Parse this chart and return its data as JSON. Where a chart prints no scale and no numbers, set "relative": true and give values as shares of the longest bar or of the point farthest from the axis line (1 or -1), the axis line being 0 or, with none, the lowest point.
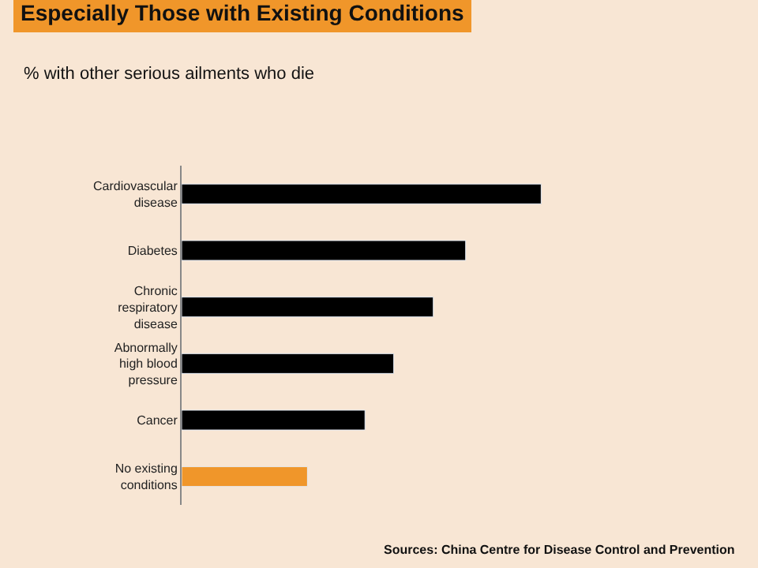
{
  "chart_data": {
    "type": "bar",
    "orientation": "horizontal",
    "relative": true,
    "title": "Especially Those with Existing Conditions",
    "subtitle": "% with other serious ailments who die",
    "categories": [
      "Cardiovascular disease",
      "Diabetes",
      "Chronic respiratory disease",
      "Abnormally high blood pressure",
      "Cancer",
      "No existing conditions"
    ],
    "values": [
      1,
      0.79,
      0.7,
      0.59,
      0.51,
      0.35
    ],
    "colors": [
      "#000000",
      "#000000",
      "#000000",
      "#000000",
      "#000000",
      "#f0962a"
    ],
    "annotations": [
      "Sources: China Centre for Disease Control and Prevention"
    ],
    "grid": false,
    "legend": false
  }
}
